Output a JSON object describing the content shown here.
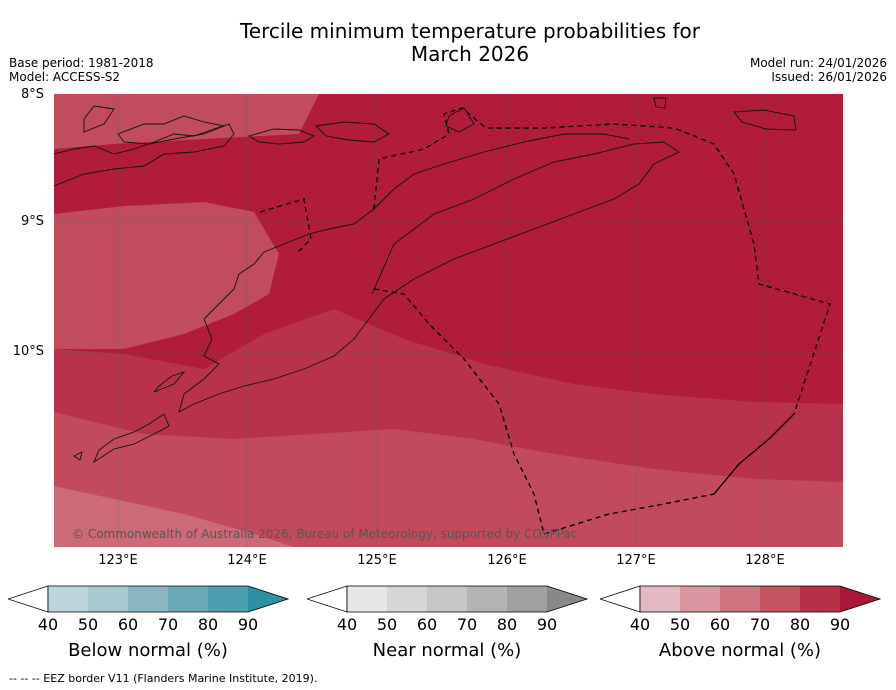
{
  "title": {
    "line1": "Tercile minimum temperature probabilities for",
    "line2": "March 2026"
  },
  "meta_left": {
    "base_period": "Base period: 1981-2018",
    "model": "Model: ACCESS-S2"
  },
  "meta_right": {
    "model_run": "Model run: 24/01/2026",
    "issued": "Issued: 26/01/2026"
  },
  "map": {
    "lat_labels": [
      "8°S",
      "9°S",
      "10°S"
    ],
    "lon_labels": [
      "123°E",
      "124°E",
      "125°E",
      "126°E",
      "127°E",
      "128°E"
    ],
    "copyright": "© Commonwealth of Australia 2026, Bureau of Meteorology, supported by COSPPac"
  },
  "colorbars": [
    {
      "title": "Below normal (%)",
      "ticks": [
        "40",
        "50",
        "60",
        "70",
        "80",
        "90"
      ],
      "colors": [
        "#bdd5dc",
        "#a6c9cf",
        "#89b6c0",
        "#6ba8b6",
        "#4a9eae",
        "#2f8fa3"
      ]
    },
    {
      "title": "Near normal (%)",
      "ticks": [
        "40",
        "50",
        "60",
        "70",
        "80",
        "90"
      ],
      "colors": [
        "#e6e6e6",
        "#d6d6d6",
        "#c6c6c6",
        "#b4b4b4",
        "#a0a0a0",
        "#888888"
      ]
    },
    {
      "title": "Above normal (%)",
      "ticks": [
        "40",
        "50",
        "60",
        "70",
        "80",
        "90"
      ],
      "colors": [
        "#e2b9c0",
        "#d995a0",
        "#ce7480",
        "#c45460",
        "#b83048",
        "#a81838"
      ]
    }
  ],
  "footnote": "--  --  -- EEZ border V11 (Flanders Marine Institute, 2019)."
}
